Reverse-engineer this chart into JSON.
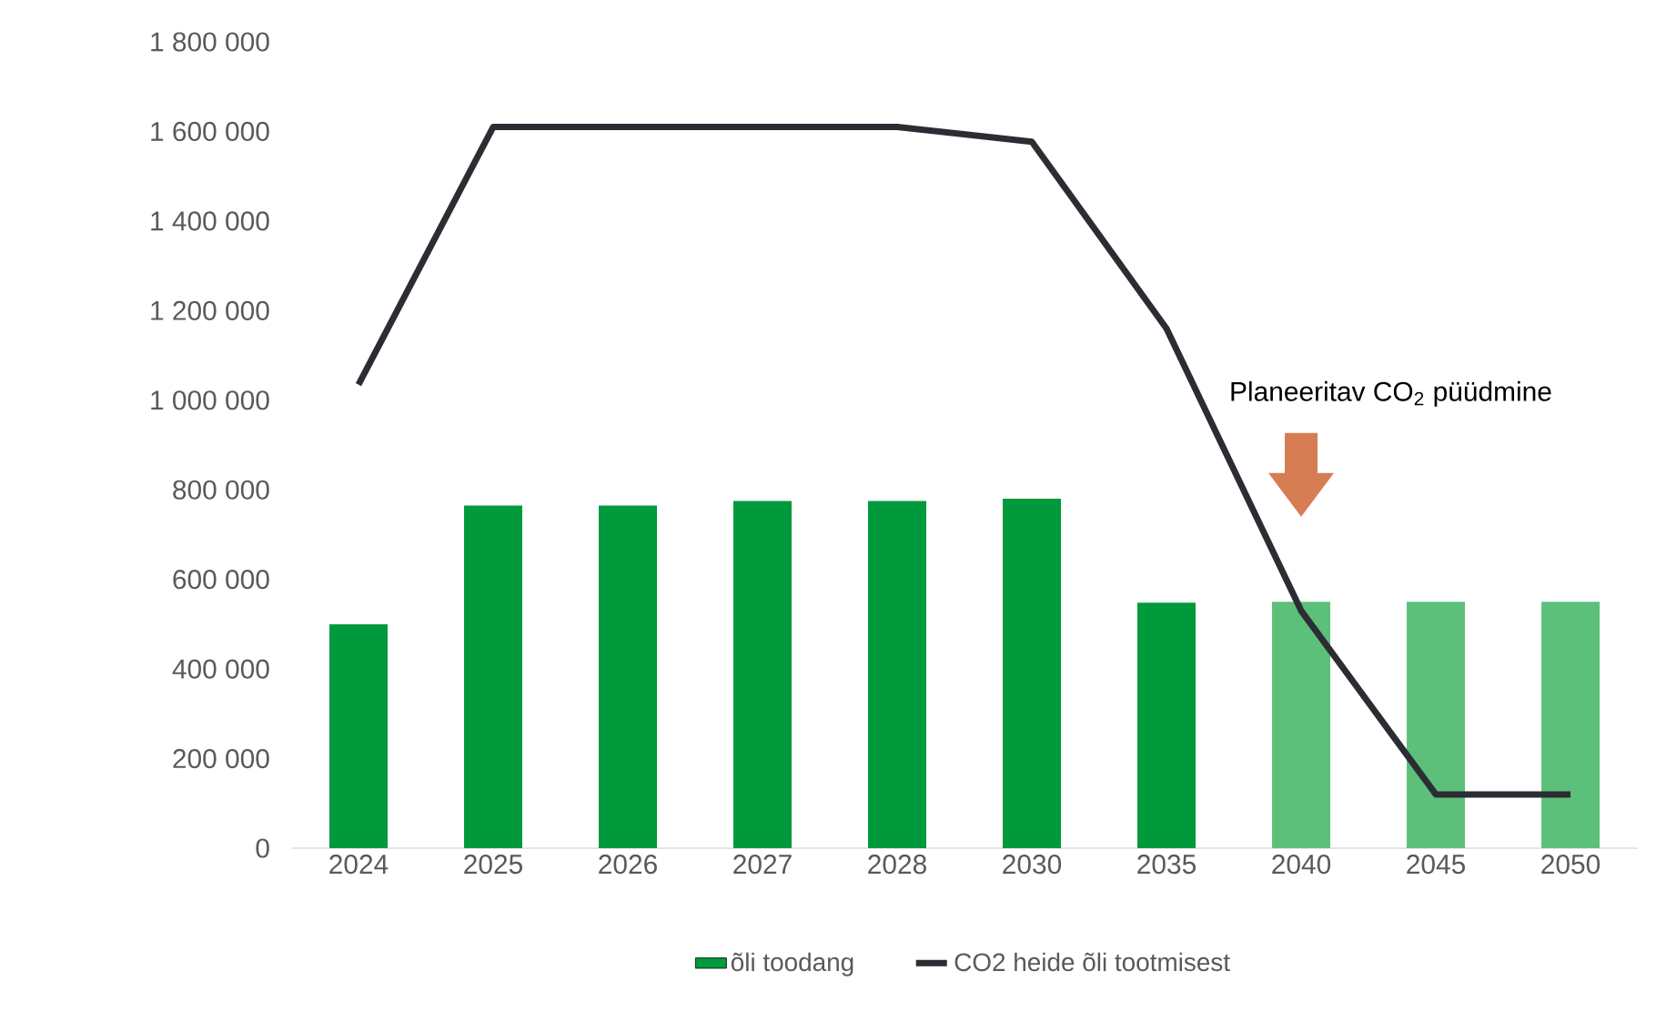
{
  "chart_data": {
    "type": "bar",
    "categories": [
      "2024",
      "2025",
      "2026",
      "2027",
      "2028",
      "2030",
      "2035",
      "2040",
      "2045",
      "2050"
    ],
    "series": [
      {
        "name": "õli toodang",
        "type": "bar",
        "color": "#009a3d",
        "colors": [
          "#009a3d",
          "#009a3d",
          "#009a3d",
          "#009a3d",
          "#009a3d",
          "#009a3d",
          "#009a3d",
          "#5cbf7a",
          "#5cbf7a",
          "#5cbf7a"
        ],
        "values": [
          500000,
          765000,
          765000,
          775000,
          775000,
          780000,
          548000,
          550000,
          550000,
          550000
        ]
      },
      {
        "name": "CO2 heide õli tootmisest",
        "type": "line",
        "color": "#2b2d33",
        "values": [
          1035000,
          1610000,
          1610000,
          1610000,
          1610000,
          1577000,
          1160000,
          530000,
          120000,
          120000
        ]
      }
    ],
    "ylim": [
      0,
      1800000
    ],
    "yticks": [
      0,
      {
        "value": 200000,
        "label": "200 000"
      },
      {
        "value": 400000,
        "label": "400 000"
      },
      {
        "value": 600000,
        "label": "600 000"
      },
      {
        "value": 800000,
        "label": "800 000"
      },
      {
        "value": 1000000,
        "label": "1 000 000"
      },
      {
        "value": 1200000,
        "label": "1 200 000"
      },
      {
        "value": 1400000,
        "label": "1 400 000"
      },
      {
        "value": 1600000,
        "label": "1 600 000"
      },
      {
        "value": 1800000,
        "label": "1 800 000"
      }
    ],
    "annotations": [
      "Planeeritav CO$_{2}$ püüdmine"
    ],
    "grid": false,
    "legend": "bottom",
    "marker": "none",
    "line_style": "solid"
  }
}
